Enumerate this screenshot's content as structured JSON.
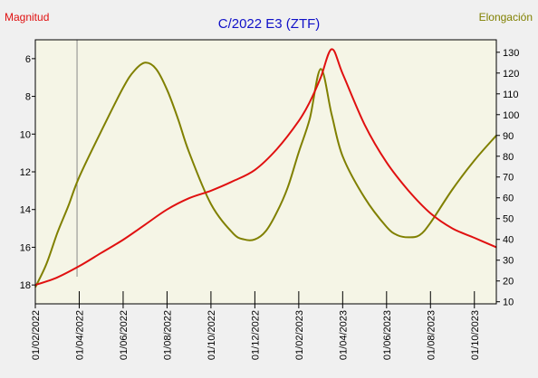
{
  "chart_data": {
    "type": "line",
    "title": "C/2022 E3 (ZTF)",
    "left_axis_label": "Magnitud",
    "right_axis_label": "Elongación",
    "x_ticks": [
      "01/02/2022",
      "01/04/2022",
      "01/06/2022",
      "01/08/2022",
      "01/10/2022",
      "01/12/2022",
      "01/02/2023",
      "01/04/2023",
      "01/06/2023",
      "01/08/2023",
      "01/10/2023"
    ],
    "x_range": [
      0,
      21
    ],
    "y_left": {
      "range_top": 5,
      "range_bottom": 19,
      "inverted": true,
      "ticks": [
        6,
        8,
        10,
        12,
        14,
        16,
        18
      ]
    },
    "y_right": {
      "range_top": 136,
      "range_bottom": 9,
      "ticks": [
        130,
        120,
        110,
        100,
        90,
        80,
        70,
        60,
        50,
        40,
        30,
        20,
        10
      ]
    },
    "marker_month": 1.9,
    "series": [
      {
        "name": "Magnitud",
        "axis": "left",
        "color": "#e01010",
        "x": [
          0,
          1,
          2,
          3,
          4,
          5,
          6,
          7,
          8,
          9,
          10,
          11,
          12,
          12.5,
          13,
          13.5,
          14,
          15,
          16,
          17,
          18,
          19,
          20,
          21
        ],
        "y": [
          18.0,
          17.6,
          17.0,
          16.3,
          15.6,
          14.8,
          14.0,
          13.4,
          13.0,
          12.5,
          11.9,
          10.8,
          9.3,
          8.3,
          7.0,
          5.5,
          6.8,
          9.5,
          11.5,
          13.0,
          14.2,
          15.0,
          15.5,
          16.0
        ]
      },
      {
        "name": "Elongación",
        "axis": "right",
        "color": "#808000",
        "x": [
          0,
          0.5,
          1,
          1.5,
          2,
          3,
          4,
          4.5,
          5,
          5.5,
          6,
          6.5,
          7,
          8,
          9,
          9.5,
          10,
          10.5,
          11,
          11.5,
          12,
          12.5,
          13,
          13.5,
          14,
          15,
          16,
          16.5,
          17,
          17.5,
          18,
          19,
          20,
          21
        ],
        "y": [
          17,
          28,
          43,
          56,
          70,
          92,
          113,
          121,
          125,
          122,
          112,
          98,
          82,
          57,
          43,
          40,
          40,
          44,
          53,
          65,
          82,
          98,
          122,
          100,
          80,
          60,
          46,
          42,
          41,
          42,
          48,
          64,
          78,
          90
        ]
      }
    ]
  }
}
